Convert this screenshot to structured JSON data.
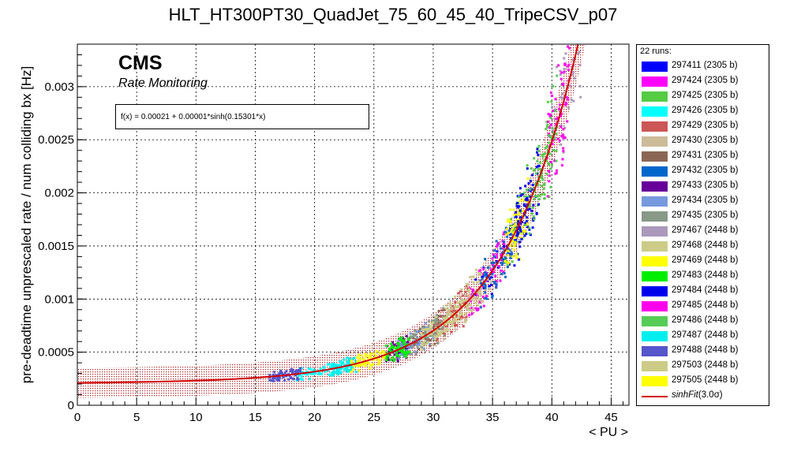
{
  "chart_data": {
    "type": "scatter",
    "title": "HLT_HT300PT30_QuadJet_75_60_45_40_TripeCSV_p07",
    "xlabel": "< PU >",
    "ylabel": "pre-deadtime unprescaled rate / num colliding bx [Hz]",
    "xlim": [
      0,
      46.5
    ],
    "ylim": [
      0,
      0.0034
    ],
    "xticks": [
      "0",
      "5",
      "10",
      "15",
      "20",
      "25",
      "30",
      "35",
      "40",
      "45"
    ],
    "yticks": [
      "0",
      "0.0005",
      "0.001",
      "0.0015",
      "0.002",
      "0.0025",
      "0.003"
    ],
    "grid": true,
    "legend_position": "right",
    "legend_header": "22 runs:",
    "annotation_title": "CMS",
    "annotation_subtitle": "Rate Monitoring",
    "fit": {
      "formula_text": "f(x) = 0.00021 + 0.00001*sinh(0.15301*x)",
      "a": 0.00021,
      "b": 1e-05,
      "c": 0.15301,
      "band_sigma": 3.0,
      "legend_label": "sinhFit",
      "legend_label_suffix": "(3.0σ)",
      "color": "#d40000"
    },
    "series": [
      {
        "name": "297411 (2305 b)",
        "color": "#0000ff",
        "pu_range": [
          33,
          38
        ]
      },
      {
        "name": "297424 (2305 b)",
        "color": "#ff00ff",
        "pu_range": [
          33,
          36
        ]
      },
      {
        "name": "297425 (2305 b)",
        "color": "#55cc44",
        "pu_range": [
          36,
          40
        ]
      },
      {
        "name": "297426 (2305 b)",
        "color": "#00ffff",
        "pu_range": [
          18.5,
          22.5
        ]
      },
      {
        "name": "297429 (2305 b)",
        "color": "#cc5555",
        "pu_range": [
          30,
          33
        ]
      },
      {
        "name": "297430 (2305 b)",
        "color": "#ccbb99",
        "pu_range": [
          30,
          35
        ]
      },
      {
        "name": "297431 (2305 b)",
        "color": "#8b6655",
        "pu_range": [
          28,
          31
        ]
      },
      {
        "name": "297432 (2305 b)",
        "color": "#0066cc",
        "pu_range": [
          34,
          37
        ]
      },
      {
        "name": "297433 (2305 b)",
        "color": "#660099",
        "pu_range": [
          26,
          28
        ]
      },
      {
        "name": "297434 (2305 b)",
        "color": "#7799dd",
        "pu_range": [
          27,
          30
        ]
      },
      {
        "name": "297435 (2305 b)",
        "color": "#889988",
        "pu_range": [
          28,
          31
        ]
      },
      {
        "name": "297467 (2448 b)",
        "color": "#aa99bb",
        "pu_range": [
          40,
          43
        ]
      },
      {
        "name": "297468 (2448 b)",
        "color": "#cccc88",
        "pu_range": [
          31,
          34
        ]
      },
      {
        "name": "297469 (2448 b)",
        "color": "#ffff00",
        "pu_range": [
          36,
          38
        ]
      },
      {
        "name": "297483 (2448 b)",
        "color": "#00ee00",
        "pu_range": [
          26,
          28
        ]
      },
      {
        "name": "297484 (2448 b)",
        "color": "#0000ee",
        "pu_range": [
          37,
          39
        ]
      },
      {
        "name": "297485 (2448 b)",
        "color": "#ff00ee",
        "pu_range": [
          39.5,
          41.5
        ]
      },
      {
        "name": "297486 (2448 b)",
        "color": "#55cc55",
        "pu_range": [
          38,
          40.5
        ]
      },
      {
        "name": "297487 (2448 b)",
        "color": "#00eeee",
        "pu_range": [
          21.5,
          23.5
        ]
      },
      {
        "name": "297488 (2448 b)",
        "color": "#5555cc",
        "pu_range": [
          16.2,
          18.8
        ]
      },
      {
        "name": "297503 (2448 b)",
        "color": "#cccc88",
        "pu_range": [
          29,
          32
        ]
      },
      {
        "name": "297505 (2448 b)",
        "color": "#ffff00",
        "pu_range": [
          23,
          26
        ]
      }
    ]
  }
}
